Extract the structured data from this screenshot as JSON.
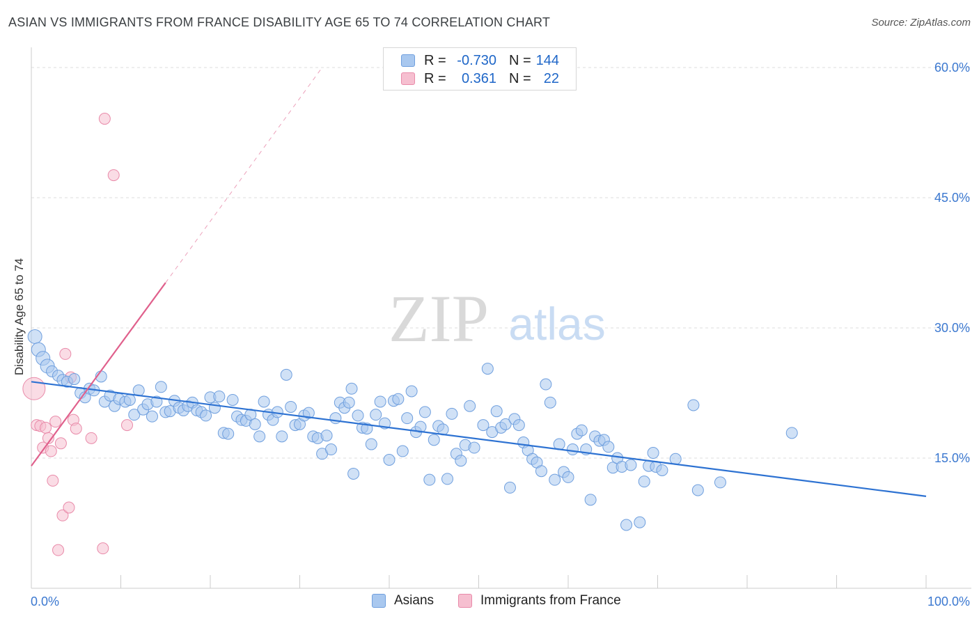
{
  "title": "ASIAN VS IMMIGRANTS FROM FRANCE DISABILITY AGE 65 TO 74 CORRELATION CHART",
  "source": "Source: ZipAtlas.com",
  "watermark": {
    "zip": "ZIP",
    "atlas": "atlas"
  },
  "colors": {
    "asian_fill": "#a9c8ef",
    "asian_stroke": "#6f9fde",
    "asian_line": "#2d72d2",
    "france_fill": "#f6bfd0",
    "france_stroke": "#e98aa9",
    "france_line": "#e0608c",
    "axis_label": "#3b78d0",
    "grid": "#dcdcdc"
  },
  "legend": {
    "rows": [
      {
        "r_label": "R =",
        "r_value": "-0.730",
        "n_label": "N =",
        "n_value": "144"
      },
      {
        "r_label": "R =",
        "r_value": "0.361",
        "n_label": "N =",
        "n_value": "22"
      }
    ]
  },
  "bottom_legend": [
    "Asians",
    "Immigrants from France"
  ],
  "chart_data": {
    "type": "scatter",
    "ylabel": "Disability Age 65 to 74",
    "xlabel": "",
    "xlim": [
      0,
      100
    ],
    "ylim": [
      0,
      60
    ],
    "x_tick_labels": [
      "0.0%",
      "100.0%"
    ],
    "y_ticks": [
      15,
      30,
      45,
      60
    ],
    "y_tick_labels": [
      "15.0%",
      "30.0%",
      "45.0%",
      "60.0%"
    ],
    "grid": true,
    "series": [
      {
        "name": "Asians",
        "R": -0.73,
        "N": 144,
        "trend": {
          "x": [
            0,
            100
          ],
          "y": [
            23.8,
            10.6
          ],
          "dashed_extension": false
        },
        "points": [
          [
            0.4,
            29
          ],
          [
            0.8,
            27.5
          ],
          [
            1.3,
            26.5
          ],
          [
            1.8,
            25.6
          ],
          [
            2.3,
            25
          ],
          [
            3,
            24.5
          ],
          [
            3.5,
            24
          ],
          [
            4,
            23.8
          ],
          [
            4.8,
            24.1
          ],
          [
            5.5,
            22.5
          ],
          [
            6,
            22
          ],
          [
            6.5,
            23
          ],
          [
            7,
            22.8
          ],
          [
            7.8,
            24.4
          ],
          [
            8.2,
            21.5
          ],
          [
            8.8,
            22.2
          ],
          [
            9.3,
            21
          ],
          [
            9.8,
            21.8
          ],
          [
            10.5,
            21.5
          ],
          [
            11,
            21.7
          ],
          [
            11.5,
            20
          ],
          [
            12,
            22.8
          ],
          [
            12.5,
            20.6
          ],
          [
            13,
            21.2
          ],
          [
            13.5,
            19.8
          ],
          [
            14,
            21.5
          ],
          [
            14.5,
            23.2
          ],
          [
            15,
            20.3
          ],
          [
            15.5,
            20.4
          ],
          [
            16,
            21.6
          ],
          [
            16.5,
            20.8
          ],
          [
            17,
            20.5
          ],
          [
            17.5,
            21
          ],
          [
            18,
            21.4
          ],
          [
            18.5,
            20.5
          ],
          [
            19,
            20.3
          ],
          [
            19.5,
            19.9
          ],
          [
            20,
            22
          ],
          [
            20.5,
            20.8
          ],
          [
            21,
            22.1
          ],
          [
            21.5,
            17.9
          ],
          [
            22,
            17.8
          ],
          [
            22.5,
            21.7
          ],
          [
            23,
            19.8
          ],
          [
            23.5,
            19.4
          ],
          [
            24,
            19.3
          ],
          [
            24.5,
            20
          ],
          [
            25,
            18.9
          ],
          [
            25.5,
            17.5
          ],
          [
            26,
            21.5
          ],
          [
            26.5,
            20
          ],
          [
            27,
            19.4
          ],
          [
            27.5,
            20.3
          ],
          [
            28,
            17.5
          ],
          [
            28.5,
            24.6
          ],
          [
            29,
            20.9
          ],
          [
            29.5,
            18.8
          ],
          [
            30,
            18.9
          ],
          [
            30.5,
            19.9
          ],
          [
            31,
            20.2
          ],
          [
            31.5,
            17.5
          ],
          [
            32,
            17.3
          ],
          [
            32.5,
            15.5
          ],
          [
            33,
            17.6
          ],
          [
            33.5,
            16
          ],
          [
            34,
            19.6
          ],
          [
            34.5,
            21.4
          ],
          [
            35,
            20.8
          ],
          [
            35.5,
            21.4
          ],
          [
            35.8,
            23
          ],
          [
            36,
            13.2
          ],
          [
            36.5,
            19.9
          ],
          [
            37,
            18.5
          ],
          [
            37.5,
            18.4
          ],
          [
            38,
            16.6
          ],
          [
            38.5,
            20
          ],
          [
            39,
            21.5
          ],
          [
            39.5,
            19
          ],
          [
            40,
            14.8
          ],
          [
            40.5,
            21.6
          ],
          [
            41,
            21.8
          ],
          [
            41.5,
            15.8
          ],
          [
            42,
            19.6
          ],
          [
            42.5,
            22.7
          ],
          [
            43,
            18
          ],
          [
            43.5,
            18.6
          ],
          [
            44,
            20.3
          ],
          [
            44.5,
            12.5
          ],
          [
            45,
            17.1
          ],
          [
            45.5,
            18.7
          ],
          [
            46,
            18.3
          ],
          [
            46.5,
            12.6
          ],
          [
            47,
            20.1
          ],
          [
            47.5,
            15.5
          ],
          [
            48,
            14.7
          ],
          [
            48.5,
            16.5
          ],
          [
            49,
            21
          ],
          [
            49.5,
            16.2
          ],
          [
            50.5,
            18.8
          ],
          [
            51,
            25.3
          ],
          [
            51.5,
            18
          ],
          [
            52,
            20.4
          ],
          [
            52.5,
            18.5
          ],
          [
            53,
            18.9
          ],
          [
            53.5,
            11.6
          ],
          [
            54,
            19.5
          ],
          [
            54.5,
            18.8
          ],
          [
            55,
            16.8
          ],
          [
            55.5,
            15.9
          ],
          [
            56,
            14.9
          ],
          [
            56.5,
            14.5
          ],
          [
            57,
            13.5
          ],
          [
            57.5,
            23.5
          ],
          [
            58,
            21.4
          ],
          [
            58.5,
            12.5
          ],
          [
            59,
            16.6
          ],
          [
            59.5,
            13.4
          ],
          [
            60,
            12.8
          ],
          [
            60.5,
            16
          ],
          [
            61,
            17.8
          ],
          [
            61.5,
            18.2
          ],
          [
            62,
            16
          ],
          [
            62.5,
            10.2
          ],
          [
            63,
            17.5
          ],
          [
            63.5,
            17
          ],
          [
            64,
            17.1
          ],
          [
            64.5,
            16.3
          ],
          [
            65,
            13.9
          ],
          [
            65.5,
            15
          ],
          [
            66,
            14
          ],
          [
            66.5,
            7.3
          ],
          [
            67,
            14.2
          ],
          [
            68,
            7.6
          ],
          [
            68.5,
            12.3
          ],
          [
            69,
            14.1
          ],
          [
            69.5,
            15.6
          ],
          [
            69.8,
            14
          ],
          [
            70.5,
            13.6
          ],
          [
            72,
            14.9
          ],
          [
            74,
            21.1
          ],
          [
            74.5,
            11.3
          ],
          [
            77,
            12.2
          ],
          [
            85,
            17.9
          ]
        ]
      },
      {
        "name": "Immigrants from France",
        "R": 0.361,
        "N": 22,
        "trend": {
          "x": [
            0,
            15
          ],
          "y": [
            14.1,
            35.2
          ],
          "dashed_extension": {
            "x": [
              15,
              32.5
            ],
            "y": [
              35.2,
              60
            ]
          }
        },
        "points": [
          [
            0.3,
            23
          ],
          [
            0.6,
            18.8
          ],
          [
            1,
            18.7
          ],
          [
            1.3,
            16.2
          ],
          [
            1.6,
            18.5
          ],
          [
            1.9,
            17.3
          ],
          [
            2.2,
            15.8
          ],
          [
            2.4,
            12.4
          ],
          [
            2.7,
            19.2
          ],
          [
            3,
            4.4
          ],
          [
            3.3,
            16.7
          ],
          [
            3.5,
            8.4
          ],
          [
            3.8,
            27
          ],
          [
            4.2,
            9.3
          ],
          [
            4.4,
            24.3
          ],
          [
            4.7,
            19.4
          ],
          [
            5,
            18.4
          ],
          [
            6.7,
            17.3
          ],
          [
            8,
            4.6
          ],
          [
            8.2,
            54.1
          ],
          [
            9.2,
            47.6
          ],
          [
            10.7,
            18.8
          ]
        ]
      }
    ]
  }
}
